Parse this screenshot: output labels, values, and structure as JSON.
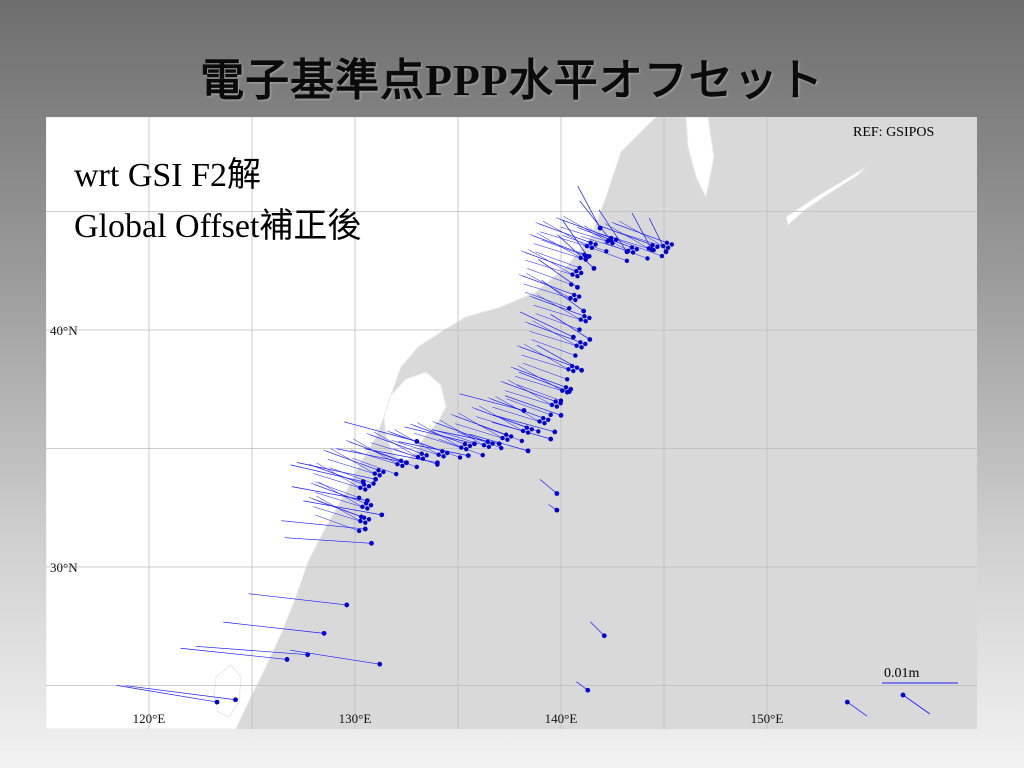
{
  "title": "電子基準点PPP水平オフセット",
  "caption": {
    "line1": "wrt GSI F2解",
    "line2": "Global Offset補正後"
  },
  "ref_text": "REF: GSIPOS",
  "scale": {
    "label": "0.01m",
    "value_m": 0.01
  },
  "colors": {
    "vector": "#1a1aff",
    "site": "#0000cc",
    "land": "#ffffff",
    "sea": "#d9d9d9",
    "grid": "#bdbdbd"
  },
  "chart_data": {
    "type": "scatter",
    "title": "電子基準点PPP水平オフセット",
    "xlabel": "",
    "ylabel": "",
    "xlim": [
      115,
      152
    ],
    "ylim": [
      22,
      46
    ],
    "x_ticks": [
      {
        "value": 120,
        "label": "120°E"
      },
      {
        "value": 130,
        "label": "130°E"
      },
      {
        "value": 140,
        "label": "140°E"
      },
      {
        "value": 150,
        "label": "150°E"
      }
    ],
    "y_ticks": [
      {
        "value": 30,
        "label": "30°N"
      },
      {
        "value": 40,
        "label": "40°N"
      }
    ],
    "grid": true,
    "reference": "REF: GSIPOS",
    "series": [
      {
        "type": "vectors",
        "points": [
          [
            141.3,
            43.1,
            -0.9,
            1.3
          ],
          [
            142.4,
            43.8,
            -1.1,
            1.4
          ],
          [
            143.2,
            43.3,
            -1.0,
            1.5
          ],
          [
            144.4,
            43.4,
            -0.7,
            1.3
          ],
          [
            145.1,
            43.3,
            -0.6,
            1.2
          ],
          [
            141.6,
            42.6,
            -1.3,
            1.2
          ],
          [
            140.8,
            41.8,
            -1.4,
            1.0
          ],
          [
            141.1,
            40.8,
            -1.5,
            1.1
          ],
          [
            141.4,
            39.6,
            -1.4,
            0.9
          ],
          [
            141.0,
            38.3,
            -1.6,
            0.9
          ],
          [
            140.4,
            37.4,
            -1.8,
            0.7
          ],
          [
            140.0,
            36.4,
            -2.0,
            0.7
          ],
          [
            139.7,
            35.7,
            -2.2,
            0.6
          ],
          [
            138.2,
            36.6,
            -2.3,
            0.6
          ],
          [
            137.0,
            35.2,
            -2.4,
            0.5
          ],
          [
            135.5,
            34.7,
            -2.5,
            0.5
          ],
          [
            135.8,
            35.2,
            -2.5,
            0.6
          ],
          [
            134.0,
            34.4,
            -2.6,
            0.5
          ],
          [
            133.0,
            35.3,
            -2.6,
            0.7
          ],
          [
            132.5,
            34.4,
            -2.5,
            0.5
          ],
          [
            131.0,
            33.7,
            -2.8,
            0.6
          ],
          [
            130.4,
            33.6,
            -2.6,
            0.6
          ],
          [
            130.6,
            32.8,
            -2.7,
            0.5
          ],
          [
            131.3,
            32.2,
            -2.8,
            0.5
          ],
          [
            130.5,
            31.6,
            -3.0,
            0.3
          ],
          [
            130.8,
            31.0,
            -3.1,
            0.2
          ],
          [
            138.4,
            34.9,
            -2.1,
            0.6
          ],
          [
            139.5,
            35.4,
            -2.1,
            0.6
          ],
          [
            141.9,
            44.3,
            -0.8,
            1.5
          ],
          [
            140.6,
            39.7,
            -1.9,
            0.9
          ],
          [
            129.6,
            28.4,
            -3.5,
            0.4
          ],
          [
            128.5,
            27.2,
            -3.6,
            0.4
          ],
          [
            127.7,
            26.3,
            -4.0,
            0.3
          ],
          [
            126.7,
            26.1,
            -3.8,
            0.4
          ],
          [
            124.2,
            24.4,
            -3.9,
            0.5
          ],
          [
            123.3,
            24.3,
            -3.6,
            0.6
          ],
          [
            131.2,
            25.9,
            -3.2,
            0.5
          ],
          [
            139.8,
            33.1,
            -0.6,
            0.5
          ],
          [
            139.8,
            32.4,
            -0.3,
            0.2
          ],
          [
            142.1,
            27.1,
            -0.5,
            0.5
          ],
          [
            141.3,
            24.8,
            -0.4,
            0.3
          ],
          [
            153.9,
            24.3,
            0.7,
            -0.5
          ]
        ]
      }
    ]
  }
}
